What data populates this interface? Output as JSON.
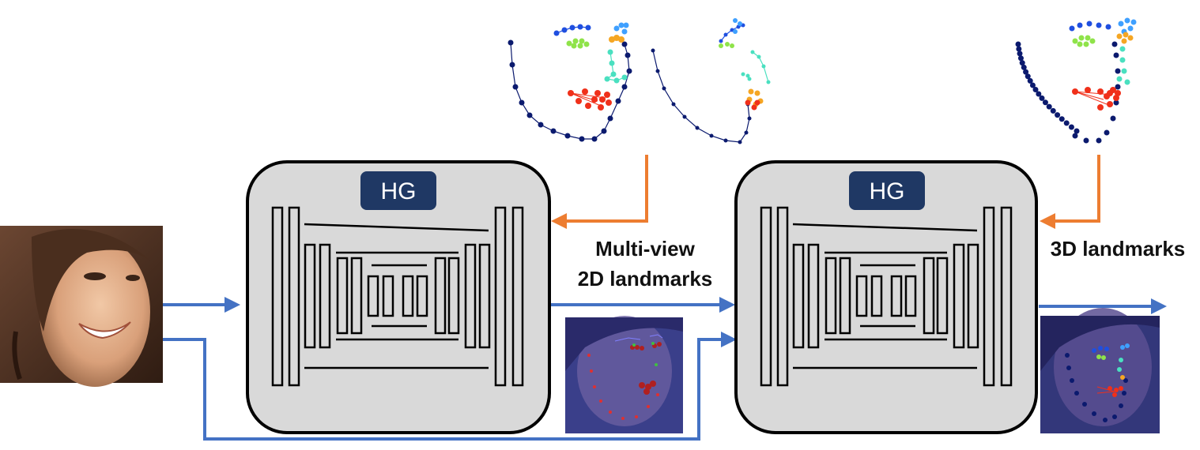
{
  "hg_block_1": {
    "label": "HG"
  },
  "hg_block_2": {
    "label": "HG"
  },
  "multiview_label": {
    "line1": "Multi-view",
    "line2": "2D landmarks"
  },
  "landmarks3d_label": {
    "text": "3D landmarks"
  },
  "colors": {
    "pipeline_arrow": "#4472C4",
    "feedback_arrow": "#ED7D31",
    "hg_fill": "#D9D9D9",
    "hg_badge": "#1F3864",
    "jaw": "#0B1A6E",
    "brow": "#1F4FE0",
    "brow_light": "#3FA0FF",
    "eye": "#8FE34A",
    "nose": "#4AE0C0",
    "nose_tip": "#F5A623",
    "mouth": "#F0301A"
  }
}
